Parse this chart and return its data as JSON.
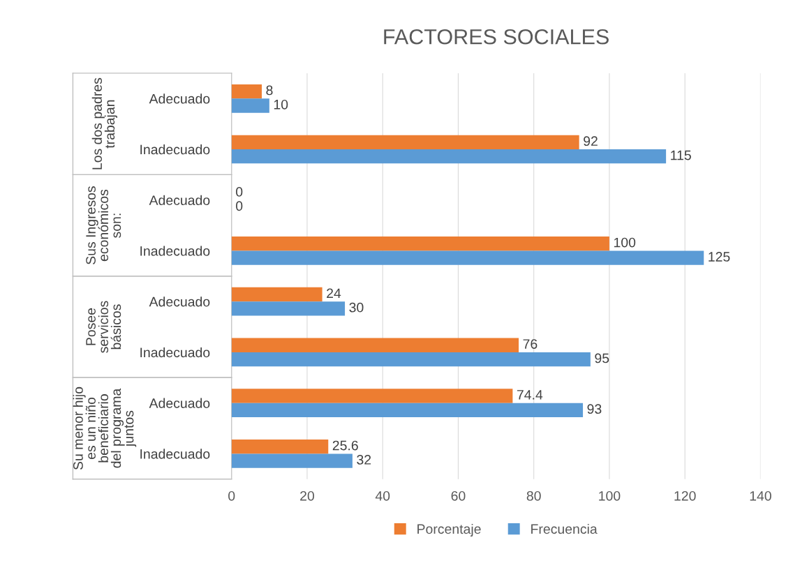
{
  "chart_data": {
    "type": "bar",
    "orientation": "horizontal",
    "title": "FACTORES SOCIALES",
    "categories": [
      "Adecuado",
      "Inadecuado",
      "Adecuado",
      "Inadecuado",
      "Adecuado",
      "Inadecuado",
      "Adecuado",
      "Inadecuado"
    ],
    "series": [
      {
        "name": "Porcentaje",
        "color": "#ed7d31",
        "values": [
          8,
          92,
          0,
          100,
          24,
          76,
          74.4,
          25.6
        ]
      },
      {
        "name": "Frecuencia",
        "color": "#5b9bd5",
        "values": [
          10,
          115,
          0,
          125,
          30,
          95,
          93,
          32
        ]
      }
    ],
    "annotations": [
      "Los dos padres\ntrabajan",
      "Sus Ingresos\neconómicos\nson:",
      "Posee\nservicios\nbásicos",
      "Su menor hijo\nes un niño\nbeneficiario\ndel programa\njuntos"
    ],
    "xlim": [
      0,
      140
    ],
    "xticks": [
      0,
      20,
      40,
      60,
      80,
      100,
      120,
      140
    ],
    "grid": "x",
    "legend": "bottom",
    "data_labels": true
  }
}
